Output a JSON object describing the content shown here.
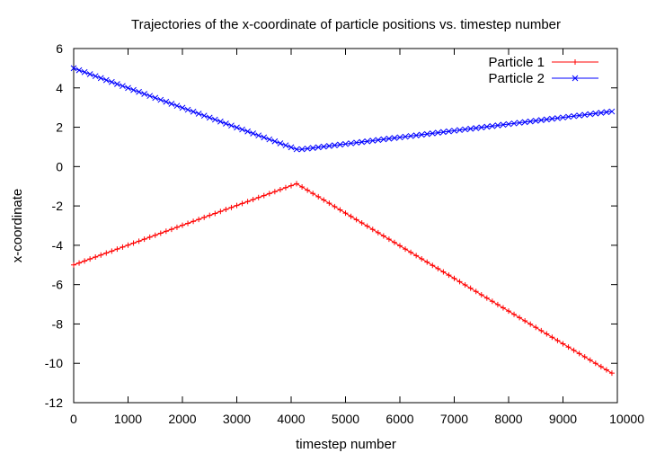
{
  "chart_data": {
    "type": "line",
    "title": "Trajectories of the x-coordinate of particle positions vs. timestep number",
    "xlabel": "timestep number",
    "ylabel": "x-coordinate",
    "xlim": [
      0,
      10000
    ],
    "ylim": [
      -12,
      6
    ],
    "xticks": [
      "0",
      "1000",
      "2000",
      "3000",
      "4000",
      "5000",
      "6000",
      "7000",
      "8000",
      "9000",
      "10000"
    ],
    "yticks": [
      "6",
      "4",
      "2",
      "0",
      "-2",
      "-4",
      "-6",
      "-8",
      "-10",
      "-12"
    ],
    "grid": false,
    "legend_position": "top-right",
    "series": [
      {
        "name": "Particle 1",
        "color": "#ff0000",
        "marker": "plus",
        "x": [
          0,
          4100,
          9900
        ],
        "y": [
          -5.0,
          -0.87,
          -10.5
        ]
      },
      {
        "name": "Particle 2",
        "color": "#0000ff",
        "marker": "cross",
        "x": [
          0,
          4100,
          4200,
          9900
        ],
        "y": [
          5.0,
          0.88,
          0.88,
          2.8
        ]
      }
    ]
  }
}
